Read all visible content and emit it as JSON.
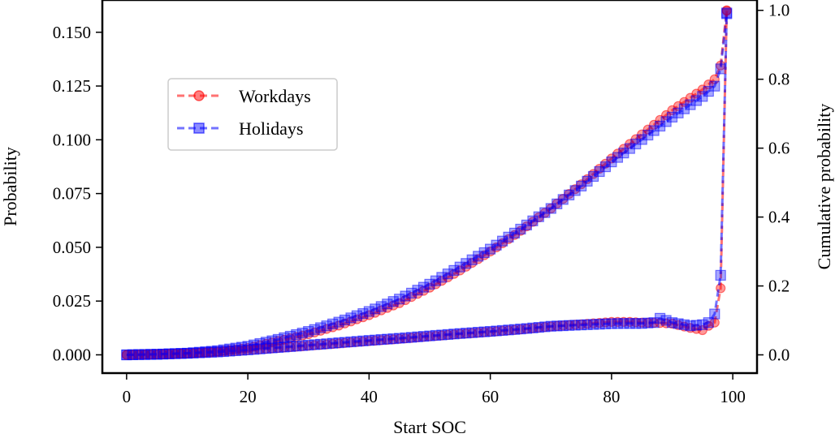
{
  "chart_data": {
    "type": "line",
    "title": "",
    "xlabel": "Start SOC",
    "ylabel": "Probability",
    "y2label": "Cumulative probability",
    "xlim": [
      -4,
      104
    ],
    "ylim": [
      -0.0085,
      0.165
    ],
    "y2lim": [
      -0.053,
      1.03
    ],
    "xticks": [
      0,
      20,
      40,
      60,
      80,
      100
    ],
    "yticks": [
      0.0,
      0.025,
      0.05,
      0.075,
      0.1,
      0.125,
      0.15
    ],
    "ytick_labels": [
      "0.000",
      "0.025",
      "0.050",
      "0.075",
      "0.100",
      "0.125",
      "0.150"
    ],
    "y2ticks": [
      0.0,
      0.2,
      0.4,
      0.6,
      0.8,
      1.0
    ],
    "y2tick_labels": [
      "0.0",
      "0.2",
      "0.4",
      "0.6",
      "0.8",
      "1.0"
    ],
    "grid": false,
    "legend": "upper-left",
    "probability_series": [
      {
        "name": "Workdays",
        "color": "#ff0000",
        "marker": "circle",
        "linestyle": "dashed",
        "axis": "left",
        "x": [
          0,
          5,
          10,
          15,
          20,
          25,
          30,
          35,
          40,
          45,
          50,
          55,
          60,
          65,
          70,
          75,
          80,
          83,
          85,
          88,
          90,
          93,
          95,
          96,
          97,
          98,
          99
        ],
        "values": [
          0.0,
          0.0002,
          0.0006,
          0.0012,
          0.0022,
          0.0032,
          0.0042,
          0.0053,
          0.0064,
          0.0074,
          0.0086,
          0.0097,
          0.0107,
          0.0118,
          0.0132,
          0.0142,
          0.0153,
          0.0153,
          0.015,
          0.0148,
          0.0145,
          0.0125,
          0.0115,
          0.0135,
          0.015,
          0.031,
          0.16
        ]
      },
      {
        "name": "Holidays",
        "color": "#0000ff",
        "marker": "square",
        "linestyle": "dashed",
        "axis": "left",
        "x": [
          0,
          5,
          10,
          15,
          20,
          25,
          30,
          35,
          40,
          45,
          50,
          55,
          60,
          65,
          70,
          75,
          80,
          83,
          85,
          87,
          88,
          90,
          93,
          95,
          96,
          97,
          98,
          99
        ],
        "values": [
          0.0,
          0.0003,
          0.0007,
          0.0013,
          0.0023,
          0.0034,
          0.0045,
          0.0056,
          0.0067,
          0.0077,
          0.0088,
          0.0099,
          0.0109,
          0.012,
          0.0133,
          0.0139,
          0.0145,
          0.0146,
          0.0146,
          0.015,
          0.017,
          0.015,
          0.0135,
          0.014,
          0.015,
          0.019,
          0.037,
          0.159
        ]
      }
    ],
    "cumulative_series": [
      {
        "name": "Workdays",
        "color": "#ff0000",
        "marker": "circle",
        "axis": "right",
        "x": [
          0,
          5,
          10,
          15,
          20,
          25,
          30,
          35,
          40,
          45,
          50,
          55,
          60,
          65,
          70,
          75,
          80,
          85,
          90,
          95,
          97,
          98,
          99
        ],
        "values": [
          0.0,
          0.001,
          0.004,
          0.01,
          0.02,
          0.04,
          0.06,
          0.085,
          0.115,
          0.15,
          0.195,
          0.245,
          0.3,
          0.36,
          0.425,
          0.495,
          0.57,
          0.64,
          0.71,
          0.77,
          0.8,
          0.84,
          1.0
        ]
      },
      {
        "name": "Holidays",
        "color": "#0000ff",
        "marker": "square",
        "axis": "right",
        "x": [
          0,
          5,
          10,
          15,
          20,
          25,
          30,
          35,
          40,
          45,
          50,
          55,
          60,
          65,
          70,
          75,
          80,
          85,
          90,
          95,
          97,
          98,
          99
        ],
        "values": [
          0.0,
          0.0015,
          0.005,
          0.012,
          0.025,
          0.045,
          0.068,
          0.095,
          0.126,
          0.162,
          0.205,
          0.255,
          0.307,
          0.365,
          0.425,
          0.49,
          0.56,
          0.625,
          0.69,
          0.75,
          0.78,
          0.83,
          0.99
        ]
      }
    ]
  }
}
